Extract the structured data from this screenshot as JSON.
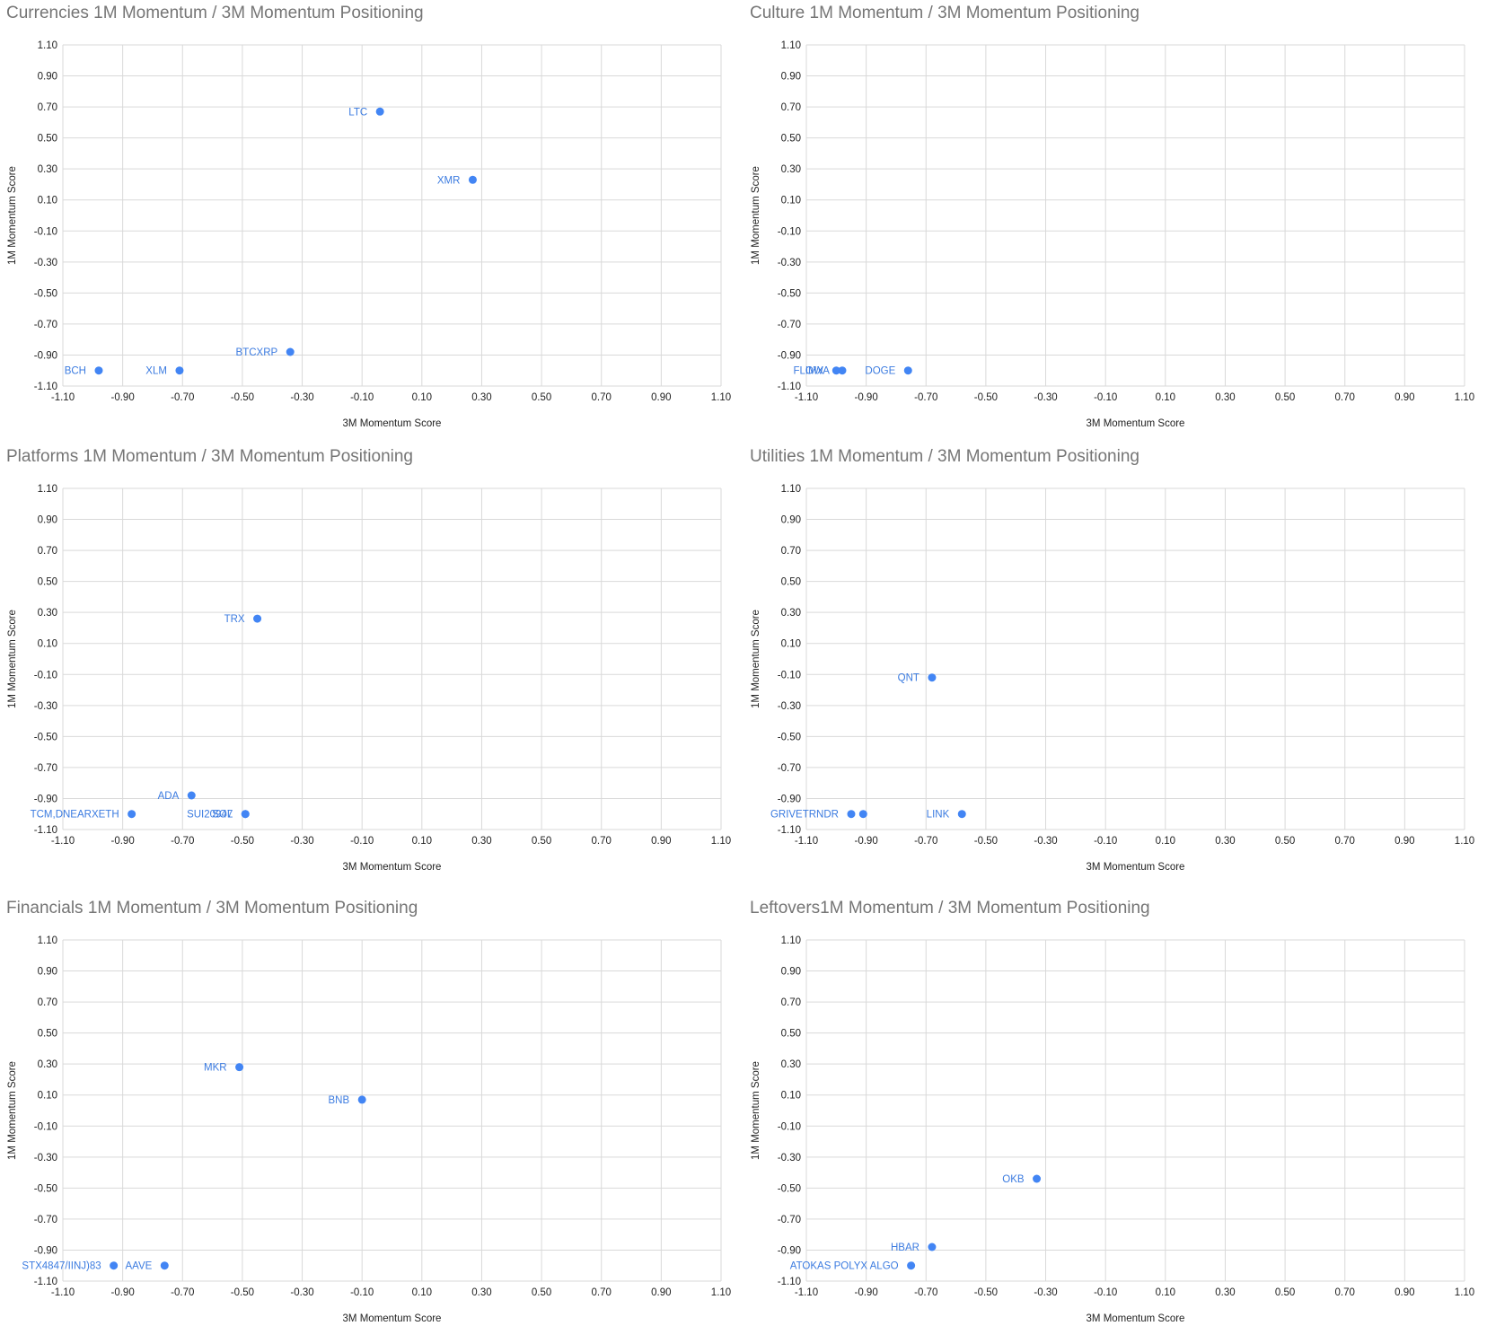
{
  "chart_data": [
    {
      "type": "scatter",
      "title": "Currencies 1M Momentum / 3M Momentum Positioning",
      "xlabel": "3M Momentum Score",
      "ylabel": "1M Momentum Score",
      "xlim": [
        -1.1,
        1.1
      ],
      "ylim": [
        -1.1,
        1.1
      ],
      "ticks": [
        "-1.10",
        "-0.90",
        "-0.70",
        "-0.50",
        "-0.30",
        "-0.10",
        "0.10",
        "0.30",
        "0.50",
        "0.70",
        "0.90",
        "1.10"
      ],
      "grid": true,
      "point_color": "#4285f4",
      "points": [
        {
          "label": "LTC",
          "x": -0.04,
          "y": 0.67
        },
        {
          "label": "XMR",
          "x": 0.27,
          "y": 0.23
        },
        {
          "label": "BTCXRP",
          "x": -0.34,
          "y": -0.88
        },
        {
          "label": "BCH",
          "x": -0.98,
          "y": -1.0
        },
        {
          "label": "XLM",
          "x": -0.71,
          "y": -1.0
        }
      ]
    },
    {
      "type": "scatter",
      "title": "Culture 1M Momentum / 3M Momentum Positioning",
      "xlabel": "3M Momentum Score",
      "ylabel": "1M Momentum Score",
      "xlim": [
        -1.1,
        1.1
      ],
      "ylim": [
        -1.1,
        1.1
      ],
      "ticks": [
        "-1.10",
        "-0.90",
        "-0.70",
        "-0.50",
        "-0.30",
        "-0.10",
        "0.10",
        "0.30",
        "0.50",
        "0.70",
        "0.90",
        "1.10"
      ],
      "grid": true,
      "point_color": "#4285f4",
      "points": [
        {
          "label": "IMX",
          "x": -1.0,
          "y": -1.0
        },
        {
          "label": "FLOWA",
          "x": -0.98,
          "y": -1.0
        },
        {
          "label": "DOGE",
          "x": -0.76,
          "y": -1.0
        }
      ]
    },
    {
      "type": "scatter",
      "title": "Platforms 1M Momentum / 3M Momentum Positioning",
      "xlabel": "3M Momentum Score",
      "ylabel": "1M Momentum Score",
      "xlim": [
        -1.1,
        1.1
      ],
      "ylim": [
        -1.1,
        1.1
      ],
      "ticks": [
        "-1.10",
        "-0.90",
        "-0.70",
        "-0.50",
        "-0.30",
        "-0.10",
        "0.10",
        "0.30",
        "0.50",
        "0.70",
        "0.90",
        "1.10"
      ],
      "grid": true,
      "point_color": "#4285f4",
      "points": [
        {
          "label": "TRX",
          "x": -0.45,
          "y": 0.26
        },
        {
          "label": "ADA",
          "x": -0.67,
          "y": -0.88
        },
        {
          "label": "TCM,DNEARXETH",
          "x": -0.87,
          "y": -1.0
        },
        {
          "label": "SUI20947",
          "x": -0.49,
          "y": -1.0
        },
        {
          "label": "SOL",
          "x": -0.49,
          "y": -1.0
        }
      ]
    },
    {
      "type": "scatter",
      "title": "Utilities 1M Momentum / 3M Momentum Positioning",
      "xlabel": "3M Momentum Score",
      "ylabel": "1M Momentum Score",
      "xlim": [
        -1.1,
        1.1
      ],
      "ylim": [
        -1.1,
        1.1
      ],
      "ticks": [
        "-1.10",
        "-0.90",
        "-0.70",
        "-0.50",
        "-0.30",
        "-0.10",
        "0.10",
        "0.30",
        "0.50",
        "0.70",
        "0.90",
        "1.10"
      ],
      "grid": true,
      "point_color": "#4285f4",
      "points": [
        {
          "label": "QNT",
          "x": -0.68,
          "y": -0.12
        },
        {
          "label": "GRIVETRNDR",
          "x": -0.95,
          "y": -1.0
        },
        {
          "label": "",
          "x": -0.91,
          "y": -1.0
        },
        {
          "label": "LINK",
          "x": -0.58,
          "y": -1.0
        }
      ]
    },
    {
      "type": "scatter",
      "title": "Financials 1M Momentum / 3M Momentum Positioning",
      "xlabel": "3M Momentum Score",
      "ylabel": "1M Momentum Score",
      "xlim": [
        -1.1,
        1.1
      ],
      "ylim": [
        -1.1,
        1.1
      ],
      "ticks": [
        "-1.10",
        "-0.90",
        "-0.70",
        "-0.50",
        "-0.30",
        "-0.10",
        "0.10",
        "0.30",
        "0.50",
        "0.70",
        "0.90",
        "1.10"
      ],
      "grid": true,
      "point_color": "#4285f4",
      "points": [
        {
          "label": "MKR",
          "x": -0.51,
          "y": 0.28
        },
        {
          "label": "BNB",
          "x": -0.1,
          "y": 0.07
        },
        {
          "label": "STX4847/IINJ)83",
          "x": -0.93,
          "y": -1.0
        },
        {
          "label": "AAVE",
          "x": -0.76,
          "y": -1.0
        }
      ]
    },
    {
      "type": "scatter",
      "title": "Leftovers1M Momentum / 3M Momentum Positioning",
      "xlabel": "3M Momentum Score",
      "ylabel": "1M Momentum Score",
      "xlim": [
        -1.1,
        1.1
      ],
      "ylim": [
        -1.1,
        1.1
      ],
      "ticks": [
        "-1.10",
        "-0.90",
        "-0.70",
        "-0.50",
        "-0.30",
        "-0.10",
        "0.10",
        "0.30",
        "0.50",
        "0.70",
        "0.90",
        "1.10"
      ],
      "grid": true,
      "point_color": "#4285f4",
      "points": [
        {
          "label": "OKB",
          "x": -0.33,
          "y": -0.44
        },
        {
          "label": "HBAR",
          "x": -0.68,
          "y": -0.88
        },
        {
          "label": "ATOKAS POLYX ALGO",
          "x": -0.75,
          "y": -1.0
        }
      ]
    }
  ]
}
